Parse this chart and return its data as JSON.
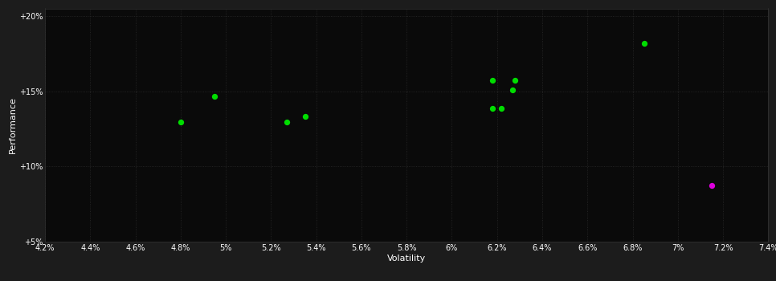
{
  "background_color": "#1c1c1c",
  "plot_bg_color": "#0a0a0a",
  "grid_color": "#2a2a2a",
  "text_color": "#ffffff",
  "xlabel": "Volatility",
  "ylabel": "Performance",
  "xlim": [
    0.042,
    0.074
  ],
  "ylim": [
    0.05,
    0.205
  ],
  "xticks": [
    0.042,
    0.044,
    0.046,
    0.048,
    0.05,
    0.052,
    0.054,
    0.056,
    0.058,
    0.06,
    0.062,
    0.064,
    0.066,
    0.068,
    0.07,
    0.072,
    0.074
  ],
  "yticks": [
    0.05,
    0.1,
    0.15,
    0.2
  ],
  "ytick_labels": [
    "+5%",
    "+10%",
    "+15%",
    "+20%"
  ],
  "xtick_labels": [
    "4.2%",
    "4.4%",
    "4.6%",
    "4.8%",
    "5%",
    "5.2%",
    "5.4%",
    "5.6%",
    "5.8%",
    "6%",
    "6.2%",
    "6.4%",
    "6.6%",
    "6.8%",
    "7%",
    "7.2%",
    "7.4%"
  ],
  "green_points": [
    [
      0.048,
      0.1295
    ],
    [
      0.0495,
      0.1465
    ],
    [
      0.0527,
      0.1295
    ],
    [
      0.0535,
      0.133
    ],
    [
      0.0618,
      0.157
    ],
    [
      0.0628,
      0.157
    ],
    [
      0.0627,
      0.151
    ],
    [
      0.0618,
      0.1385
    ],
    [
      0.0622,
      0.1385
    ],
    [
      0.0685,
      0.182
    ]
  ],
  "magenta_points": [
    [
      0.0715,
      0.0875
    ]
  ],
  "dot_size": 18,
  "green_color": "#00dd00",
  "magenta_color": "#dd00dd",
  "grid_linestyle": ":",
  "grid_linewidth": 0.6,
  "grid_alpha": 1.0,
  "font_size_ticks": 7,
  "font_size_labels": 8
}
